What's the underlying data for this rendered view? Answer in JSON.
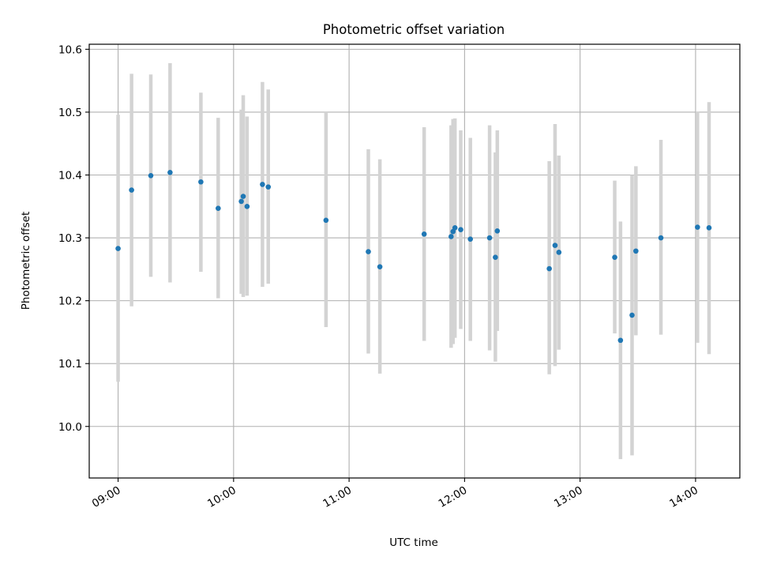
{
  "colors": {
    "point": "#1f77b4",
    "errorbar": "#d3d3d3",
    "grid": "#b0b0b0",
    "axis": "#000000",
    "background": "#ffffff"
  },
  "chart_data": {
    "type": "scatter",
    "title": "Photometric offset variation",
    "xlabel": "UTC time",
    "ylabel": "Photometric offset",
    "grid": true,
    "x_unit": "UTC time (HH:MM)",
    "xlim": [
      "08:45",
      "14:23"
    ],
    "ylim": [
      9.918,
      10.608
    ],
    "x_ticks": [
      "09:00",
      "10:00",
      "11:00",
      "12:00",
      "13:00",
      "14:00"
    ],
    "y_ticks": [
      "10.0",
      "10.1",
      "10.2",
      "10.3",
      "10.4",
      "10.5",
      "10.6"
    ],
    "points": [
      {
        "time": "09:00",
        "value": 10.283,
        "err_low": 10.071,
        "err_high": 10.496
      },
      {
        "time": "09:07",
        "value": 10.376,
        "err_low": 10.191,
        "err_high": 10.561
      },
      {
        "time": "09:17",
        "value": 10.399,
        "err_low": 10.238,
        "err_high": 10.56
      },
      {
        "time": "09:27",
        "value": 10.404,
        "err_low": 10.229,
        "err_high": 10.578
      },
      {
        "time": "09:43",
        "value": 10.389,
        "err_low": 10.246,
        "err_high": 10.531
      },
      {
        "time": "09:52",
        "value": 10.347,
        "err_low": 10.204,
        "err_high": 10.491
      },
      {
        "time": "10:04",
        "value": 10.358,
        "err_low": 10.211,
        "err_high": 10.504
      },
      {
        "time": "10:05",
        "value": 10.366,
        "err_low": 10.206,
        "err_high": 10.527
      },
      {
        "time": "10:07",
        "value": 10.35,
        "err_low": 10.208,
        "err_high": 10.493
      },
      {
        "time": "10:15",
        "value": 10.385,
        "err_low": 10.222,
        "err_high": 10.548
      },
      {
        "time": "10:18",
        "value": 10.381,
        "err_low": 10.227,
        "err_high": 10.536
      },
      {
        "time": "10:48",
        "value": 10.328,
        "err_low": 10.158,
        "err_high": 10.5
      },
      {
        "time": "11:10",
        "value": 10.278,
        "err_low": 10.116,
        "err_high": 10.441
      },
      {
        "time": "11:16",
        "value": 10.254,
        "err_low": 10.084,
        "err_high": 10.425
      },
      {
        "time": "11:39",
        "value": 10.306,
        "err_low": 10.136,
        "err_high": 10.476
      },
      {
        "time": "11:53",
        "value": 10.302,
        "err_low": 10.125,
        "err_high": 10.479
      },
      {
        "time": "11:54",
        "value": 10.31,
        "err_low": 10.131,
        "err_high": 10.489
      },
      {
        "time": "11:55",
        "value": 10.316,
        "err_low": 10.141,
        "err_high": 10.49
      },
      {
        "time": "11:58",
        "value": 10.313,
        "err_low": 10.155,
        "err_high": 10.471
      },
      {
        "time": "12:03",
        "value": 10.298,
        "err_low": 10.136,
        "err_high": 10.459
      },
      {
        "time": "12:13",
        "value": 10.3,
        "err_low": 10.121,
        "err_high": 10.479
      },
      {
        "time": "12:16",
        "value": 10.269,
        "err_low": 10.103,
        "err_high": 10.436
      },
      {
        "time": "12:17",
        "value": 10.311,
        "err_low": 10.152,
        "err_high": 10.471
      },
      {
        "time": "12:44",
        "value": 10.251,
        "err_low": 10.083,
        "err_high": 10.422
      },
      {
        "time": "12:47",
        "value": 10.288,
        "err_low": 10.096,
        "err_high": 10.481
      },
      {
        "time": "12:49",
        "value": 10.277,
        "err_low": 10.122,
        "err_high": 10.431
      },
      {
        "time": "13:18",
        "value": 10.269,
        "err_low": 10.148,
        "err_high": 10.391
      },
      {
        "time": "13:21",
        "value": 10.137,
        "err_low": 9.948,
        "err_high": 10.326
      },
      {
        "time": "13:27",
        "value": 10.177,
        "err_low": 9.954,
        "err_high": 10.4
      },
      {
        "time": "13:29",
        "value": 10.279,
        "err_low": 10.145,
        "err_high": 10.414
      },
      {
        "time": "13:42",
        "value": 10.3,
        "err_low": 10.146,
        "err_high": 10.456
      },
      {
        "time": "14:01",
        "value": 10.317,
        "err_low": 10.133,
        "err_high": 10.501
      },
      {
        "time": "14:07",
        "value": 10.316,
        "err_low": 10.115,
        "err_high": 10.516
      }
    ]
  }
}
